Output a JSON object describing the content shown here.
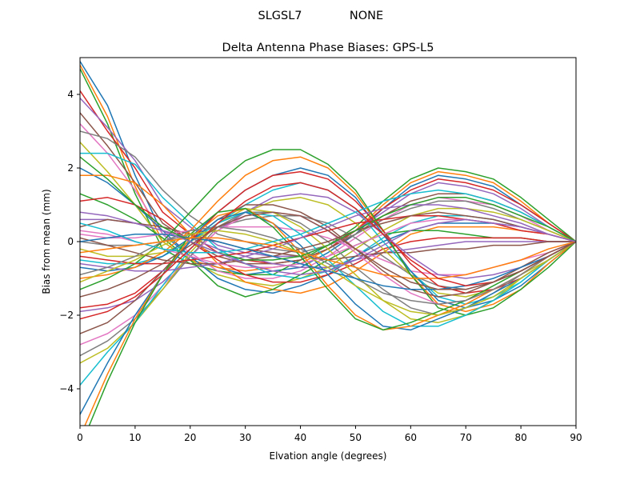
{
  "figure": {
    "suptitle_left": "SLGSL7",
    "suptitle_right": "NONE"
  },
  "chart_data": {
    "type": "line",
    "title": "Delta Antenna Phase Biases: GPS-L5",
    "xlabel": "Elvation angle (degrees)",
    "ylabel": "Bias from mean (mm)",
    "xlim": [
      0,
      90
    ],
    "ylim": [
      -5,
      5
    ],
    "xticks": [
      "0",
      "10",
      "20",
      "30",
      "40",
      "50",
      "60",
      "70",
      "80",
      "90"
    ],
    "yticks": [
      "−4",
      "−2",
      "0",
      "2",
      "4"
    ],
    "ytick_values": [
      -4,
      -2,
      0,
      2,
      4
    ],
    "grid": false,
    "legend": "none",
    "x": [
      0,
      5,
      10,
      15,
      20,
      25,
      30,
      35,
      40,
      45,
      50,
      55,
      60,
      65,
      70,
      75,
      80,
      85,
      90
    ],
    "colors": [
      "#1f77b4",
      "#ff7f0e",
      "#2ca02c",
      "#d62728",
      "#9467bd",
      "#8c564b",
      "#e377c2",
      "#7f7f7f",
      "#bcbd22",
      "#17becf"
    ],
    "series": [
      {
        "values": [
          4.9,
          3.7,
          1.8,
          0.2,
          -0.4,
          -0.7,
          -0.9,
          -0.8,
          -0.7,
          -0.3,
          0.2,
          0.9,
          1.5,
          1.8,
          1.7,
          1.5,
          1.0,
          0.5,
          0.0
        ]
      },
      {
        "values": [
          4.8,
          3.4,
          1.5,
          0.0,
          -0.5,
          -0.7,
          -0.8,
          -0.7,
          -0.6,
          -0.2,
          0.3,
          1.0,
          1.6,
          1.9,
          1.8,
          1.6,
          1.1,
          0.5,
          0.0
        ]
      },
      {
        "values": [
          4.7,
          3.2,
          1.3,
          -0.2,
          -0.6,
          -0.8,
          -0.9,
          -0.9,
          -0.5,
          -0.1,
          0.4,
          1.1,
          1.7,
          2.0,
          1.9,
          1.7,
          1.2,
          0.6,
          0.0
        ]
      },
      {
        "values": [
          4.1,
          3.0,
          2.0,
          0.8,
          0.2,
          -0.3,
          -0.5,
          -0.6,
          -0.5,
          -0.2,
          0.3,
          0.9,
          1.4,
          1.7,
          1.6,
          1.4,
          1.0,
          0.5,
          0.0
        ]
      },
      {
        "values": [
          3.9,
          3.1,
          2.2,
          1.0,
          0.4,
          -0.1,
          -0.3,
          -0.4,
          -0.4,
          -0.1,
          0.3,
          0.8,
          1.3,
          1.6,
          1.5,
          1.3,
          0.9,
          0.4,
          0.0
        ]
      },
      {
        "values": [
          3.5,
          2.6,
          1.6,
          0.5,
          0.0,
          -0.4,
          -0.6,
          -0.6,
          -0.5,
          -0.2,
          0.2,
          0.7,
          1.1,
          1.3,
          1.3,
          1.1,
          0.8,
          0.4,
          0.0
        ]
      },
      {
        "values": [
          3.2,
          2.4,
          1.4,
          0.2,
          -0.3,
          -0.8,
          -1.0,
          -1.0,
          -0.8,
          -0.4,
          0.1,
          0.6,
          1.0,
          1.2,
          1.1,
          1.0,
          0.7,
          0.3,
          0.0
        ]
      },
      {
        "values": [
          3.0,
          2.8,
          2.3,
          1.4,
          0.7,
          0.2,
          0.0,
          -0.2,
          -0.3,
          -0.1,
          0.2,
          0.6,
          0.9,
          1.1,
          1.1,
          0.9,
          0.6,
          0.3,
          0.0
        ]
      },
      {
        "values": [
          2.7,
          1.9,
          1.0,
          0.0,
          -0.5,
          -0.9,
          -1.1,
          -1.2,
          -1.0,
          -0.7,
          -0.2,
          0.3,
          0.7,
          0.9,
          0.9,
          0.8,
          0.6,
          0.3,
          0.0
        ]
      },
      {
        "values": [
          2.4,
          2.4,
          2.1,
          1.2,
          0.5,
          -0.2,
          -0.6,
          -0.9,
          -1.0,
          -0.8,
          -0.4,
          0.1,
          0.5,
          0.7,
          0.7,
          0.6,
          0.4,
          0.2,
          0.0
        ]
      },
      {
        "values": [
          2.0,
          1.6,
          1.0,
          0.3,
          -0.4,
          -1.0,
          -1.3,
          -1.4,
          -1.2,
          -0.9,
          -0.4,
          0.0,
          0.3,
          0.5,
          0.5,
          0.5,
          0.4,
          0.2,
          0.0
        ]
      },
      {
        "values": [
          1.8,
          1.8,
          1.6,
          1.0,
          0.2,
          -0.6,
          -1.1,
          -1.3,
          -1.4,
          -1.2,
          -0.8,
          -0.3,
          0.2,
          0.4,
          0.4,
          0.4,
          0.3,
          0.2,
          0.0
        ]
      },
      {
        "values": [
          1.3,
          1.0,
          0.6,
          0.1,
          -0.5,
          -1.2,
          -1.5,
          -1.3,
          -0.9,
          -0.5,
          -0.1,
          0.2,
          0.3,
          0.3,
          0.2,
          0.1,
          0.1,
          0.0,
          0.0
        ]
      },
      {
        "values": [
          1.1,
          1.2,
          1.0,
          0.6,
          0.0,
          -0.5,
          -0.9,
          -1.1,
          -1.1,
          -0.9,
          -0.6,
          -0.2,
          0.0,
          0.1,
          0.1,
          0.1,
          0.1,
          0.0,
          0.0
        ]
      },
      {
        "values": [
          0.6,
          0.6,
          0.5,
          0.3,
          0.1,
          -0.2,
          -0.4,
          -0.6,
          -0.7,
          -0.7,
          -0.5,
          -0.3,
          -0.2,
          -0.1,
          0.0,
          0.0,
          0.0,
          0.0,
          0.0
        ]
      },
      {
        "values": [
          0.4,
          0.6,
          0.5,
          0.4,
          0.2,
          0.0,
          -0.2,
          -0.3,
          -0.4,
          -0.5,
          -0.4,
          -0.3,
          -0.3,
          -0.2,
          -0.2,
          -0.1,
          -0.1,
          0.0,
          0.0
        ]
      },
      {
        "values": [
          0.2,
          0.1,
          0.1,
          0.2,
          0.3,
          0.4,
          0.4,
          0.4,
          0.3,
          0.1,
          -0.2,
          -0.5,
          -0.8,
          -0.9,
          -0.9,
          -0.7,
          -0.5,
          -0.3,
          0.0
        ]
      },
      {
        "values": [
          0.0,
          -0.1,
          -0.1,
          0.0,
          0.2,
          0.4,
          0.6,
          0.7,
          0.7,
          0.5,
          0.1,
          -0.4,
          -0.9,
          -1.2,
          -1.3,
          -1.1,
          -0.8,
          -0.4,
          0.0
        ]
      },
      {
        "values": [
          -0.2,
          -0.4,
          -0.4,
          -0.3,
          0.0,
          0.4,
          0.8,
          1.1,
          1.2,
          1.0,
          0.5,
          -0.2,
          -0.9,
          -1.4,
          -1.5,
          -1.3,
          -0.9,
          -0.5,
          0.0
        ]
      },
      {
        "values": [
          -0.5,
          -0.6,
          -0.6,
          -0.4,
          0.0,
          0.5,
          1.0,
          1.4,
          1.6,
          1.4,
          0.9,
          0.0,
          -0.8,
          -1.5,
          -1.7,
          -1.5,
          -1.1,
          -0.5,
          0.0
        ]
      },
      {
        "values": [
          -0.7,
          -0.8,
          -0.7,
          -0.4,
          0.1,
          0.8,
          1.4,
          1.8,
          2.0,
          1.8,
          1.2,
          0.2,
          -0.8,
          -1.6,
          -1.8,
          -1.6,
          -1.2,
          -0.6,
          0.0
        ]
      },
      {
        "values": [
          -1.0,
          -0.9,
          -0.7,
          -0.3,
          0.3,
          1.1,
          1.8,
          2.2,
          2.3,
          2.0,
          1.3,
          0.3,
          -0.9,
          -1.7,
          -1.9,
          -1.7,
          -1.3,
          -0.6,
          0.0
        ]
      },
      {
        "values": [
          -1.3,
          -1.0,
          -0.6,
          0.0,
          0.8,
          1.6,
          2.2,
          2.5,
          2.5,
          2.1,
          1.4,
          0.3,
          -0.9,
          -1.8,
          -2.0,
          -1.8,
          -1.3,
          -0.7,
          0.0
        ]
      },
      {
        "values": [
          -1.8,
          -1.7,
          -1.4,
          -0.8,
          0.0,
          0.8,
          1.4,
          1.8,
          1.9,
          1.7,
          1.1,
          0.3,
          -0.6,
          -1.2,
          -1.4,
          -1.3,
          -1.0,
          -0.5,
          0.0
        ]
      },
      {
        "values": [
          -1.9,
          -1.8,
          -1.6,
          -1.1,
          -0.4,
          0.3,
          0.8,
          1.2,
          1.3,
          1.2,
          0.8,
          0.2,
          -0.4,
          -0.9,
          -1.0,
          -0.9,
          -0.7,
          -0.4,
          0.0
        ]
      },
      {
        "values": [
          -2.5,
          -2.2,
          -1.6,
          -0.8,
          0.0,
          0.6,
          1.0,
          1.0,
          0.8,
          0.4,
          -0.2,
          -0.8,
          -1.3,
          -1.5,
          -1.4,
          -1.1,
          -0.7,
          -0.3,
          0.0
        ]
      },
      {
        "values": [
          -2.8,
          -2.5,
          -2.0,
          -1.2,
          -0.4,
          0.3,
          0.7,
          0.8,
          0.7,
          0.3,
          -0.3,
          -0.9,
          -1.4,
          -1.7,
          -1.6,
          -1.3,
          -0.9,
          -0.4,
          0.0
        ]
      },
      {
        "values": [
          -3.1,
          -2.7,
          -2.1,
          -1.3,
          -0.4,
          0.4,
          0.8,
          0.8,
          0.5,
          0.0,
          -0.7,
          -1.3,
          -1.8,
          -2.0,
          -1.8,
          -1.4,
          -0.9,
          -0.4,
          0.0
        ]
      },
      {
        "values": [
          -3.3,
          -2.9,
          -2.2,
          -1.3,
          -0.3,
          0.5,
          0.9,
          0.8,
          0.4,
          -0.2,
          -0.9,
          -1.6,
          -2.1,
          -2.2,
          -2.0,
          -1.6,
          -1.0,
          -0.5,
          0.0
        ]
      },
      {
        "values": [
          -3.9,
          -3.0,
          -2.2,
          -1.2,
          -0.2,
          0.5,
          0.8,
          0.7,
          0.2,
          -0.5,
          -1.2,
          -1.9,
          -2.3,
          -2.3,
          -2.0,
          -1.6,
          -1.1,
          -0.5,
          0.0
        ]
      },
      {
        "values": [
          -4.7,
          -3.3,
          -2.0,
          -0.9,
          0.0,
          0.6,
          0.8,
          0.5,
          -0.1,
          -0.9,
          -1.7,
          -2.3,
          -2.4,
          -2.1,
          -1.8,
          -1.4,
          -1.0,
          -0.5,
          0.0
        ]
      },
      {
        "values": [
          -5.3,
          -3.6,
          -2.1,
          -0.9,
          0.1,
          0.7,
          0.9,
          0.5,
          -0.3,
          -1.2,
          -2.0,
          -2.4,
          -2.3,
          -2.0,
          -1.7,
          -1.3,
          -0.9,
          -0.4,
          0.0
        ]
      },
      {
        "values": [
          -5.6,
          -3.8,
          -2.2,
          -0.9,
          0.2,
          0.8,
          0.9,
          0.4,
          -0.4,
          -1.3,
          -2.1,
          -2.4,
          -2.2,
          -1.9,
          -1.6,
          -1.2,
          -0.8,
          -0.4,
          0.0
        ]
      },
      {
        "values": [
          -0.4,
          -0.5,
          -0.6,
          -0.6,
          -0.5,
          -0.4,
          -0.3,
          -0.1,
          0.1,
          0.3,
          0.5,
          0.6,
          0.7,
          0.7,
          0.6,
          0.5,
          0.3,
          0.2,
          0.0
        ]
      },
      {
        "values": [
          -0.6,
          -0.7,
          -0.8,
          -0.8,
          -0.7,
          -0.6,
          -0.4,
          -0.2,
          0.1,
          0.4,
          0.7,
          0.9,
          1.0,
          1.0,
          0.9,
          0.7,
          0.5,
          0.2,
          0.0
        ]
      },
      {
        "values": [
          0.1,
          -0.1,
          -0.3,
          -0.5,
          -0.6,
          -0.6,
          -0.5,
          -0.4,
          -0.2,
          0.0,
          0.3,
          0.5,
          0.7,
          0.8,
          0.7,
          0.6,
          0.4,
          0.2,
          0.0
        ]
      },
      {
        "values": [
          0.3,
          0.2,
          0.0,
          -0.2,
          -0.4,
          -0.6,
          -0.7,
          -0.7,
          -0.6,
          -0.4,
          -0.1,
          0.2,
          0.5,
          0.6,
          0.6,
          0.5,
          0.4,
          0.2,
          0.0
        ]
      },
      {
        "values": [
          -0.9,
          -0.7,
          -0.4,
          0.0,
          0.3,
          0.4,
          0.3,
          0.1,
          -0.2,
          -0.6,
          -1.0,
          -1.4,
          -1.6,
          -1.7,
          -1.6,
          -1.3,
          -0.9,
          -0.4,
          0.0
        ]
      },
      {
        "values": [
          -1.1,
          -0.8,
          -0.5,
          -0.1,
          0.2,
          0.3,
          0.2,
          0.0,
          -0.3,
          -0.7,
          -1.2,
          -1.6,
          -1.9,
          -2.0,
          -1.8,
          -1.5,
          -1.0,
          -0.5,
          0.0
        ]
      },
      {
        "values": [
          0.5,
          0.3,
          0.0,
          -0.2,
          -0.3,
          -0.3,
          -0.2,
          0.0,
          0.2,
          0.5,
          0.8,
          1.1,
          1.3,
          1.4,
          1.3,
          1.1,
          0.8,
          0.4,
          0.0
        ]
      },
      {
        "values": [
          0.0,
          0.1,
          0.2,
          0.2,
          0.1,
          0.0,
          -0.2,
          -0.4,
          -0.6,
          -0.8,
          -1.0,
          -1.2,
          -1.3,
          -1.3,
          -1.2,
          -1.0,
          -0.7,
          -0.4,
          0.0
        ]
      },
      {
        "values": [
          -0.3,
          -0.2,
          -0.1,
          0.0,
          0.1,
          0.1,
          0.0,
          -0.1,
          -0.3,
          -0.5,
          -0.7,
          -0.9,
          -1.0,
          -1.0,
          -0.9,
          -0.7,
          -0.5,
          -0.2,
          0.0
        ]
      },
      {
        "values": [
          2.3,
          1.7,
          1.0,
          0.4,
          0.0,
          -0.3,
          -0.5,
          -0.5,
          -0.4,
          -0.1,
          0.3,
          0.7,
          1.0,
          1.2,
          1.2,
          1.0,
          0.7,
          0.4,
          0.0
        ]
      },
      {
        "values": [
          -2.1,
          -1.9,
          -1.5,
          -0.9,
          -0.2,
          0.5,
          1.1,
          1.5,
          1.6,
          1.4,
          0.9,
          0.2,
          -0.5,
          -1.0,
          -1.2,
          -1.1,
          -0.8,
          -0.4,
          0.0
        ]
      },
      {
        "values": [
          0.8,
          0.7,
          0.5,
          0.3,
          0.0,
          -0.3,
          -0.6,
          -0.8,
          -0.9,
          -0.8,
          -0.5,
          -0.1,
          0.3,
          0.5,
          0.6,
          0.5,
          0.4,
          0.2,
          0.0
        ]
      },
      {
        "values": [
          -1.5,
          -1.3,
          -1.0,
          -0.6,
          -0.1,
          0.4,
          0.7,
          0.8,
          0.7,
          0.3,
          -0.2,
          -0.7,
          -1.1,
          -1.3,
          -1.3,
          -1.1,
          -0.8,
          -0.4,
          0.0
        ]
      }
    ]
  }
}
